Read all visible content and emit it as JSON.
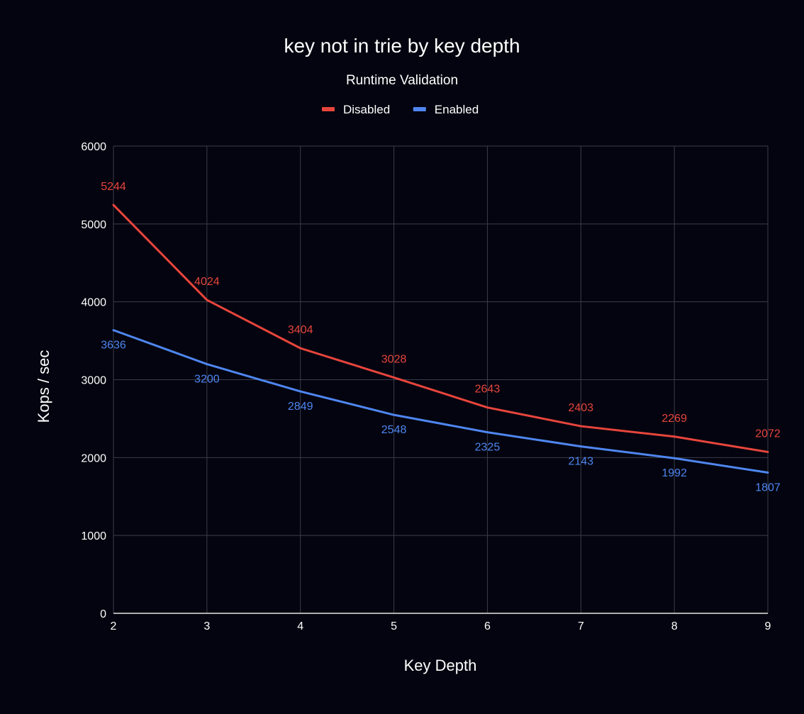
{
  "chart_data": {
    "type": "line",
    "title": "key not in trie by key depth",
    "legend_title": "Runtime Validation",
    "legend_position": "top",
    "xlabel": "Key Depth",
    "ylabel": "Kops / sec",
    "x": [
      2,
      3,
      4,
      5,
      6,
      7,
      8,
      9
    ],
    "xlim": [
      2,
      9
    ],
    "ylim": [
      0,
      6000
    ],
    "y_ticks": [
      0,
      1000,
      2000,
      3000,
      4000,
      5000,
      6000
    ],
    "grid": true,
    "series": [
      {
        "name": "Disabled",
        "color": "#e8453c",
        "values": [
          5244,
          4024,
          3404,
          3028,
          2643,
          2403,
          2269,
          2072
        ],
        "label_position": "above"
      },
      {
        "name": "Enabled",
        "color": "#4f86f0",
        "values": [
          3636,
          3200,
          2849,
          2548,
          2325,
          2143,
          1992,
          1807
        ],
        "label_position": "below"
      }
    ]
  },
  "colors": {
    "background": "#03040f",
    "grid": "#3a3d4a",
    "axis": "#e6e6e6",
    "text": "#ffffff"
  }
}
